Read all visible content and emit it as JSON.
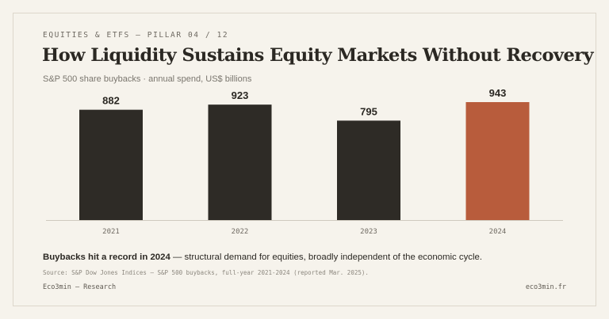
{
  "header": {
    "eyebrow": "EQUITIES & ETFS — PILLAR 04 / 12",
    "title": "How Liquidity Sustains Equity Markets Without Recovery",
    "subtitle": "S&P 500 share buybacks · annual spend, US$ billions"
  },
  "colors": {
    "bar": "#2e2b26",
    "highlight": "#b85c3c",
    "axis": "#cfc9be",
    "background": "#f6f3ec"
  },
  "chart_data": {
    "type": "bar",
    "categories": [
      "2021",
      "2022",
      "2023",
      "2024"
    ],
    "values": [
      882,
      923,
      795,
      943
    ],
    "highlight_index": 3,
    "ylim": [
      0,
      1000
    ],
    "grid": false,
    "title": "",
    "xlabel": "",
    "ylabel": ""
  },
  "takeaway": {
    "lead": "Buybacks hit a record in 2024",
    "rest": " — structural demand for equities, broadly independent of the economic cycle."
  },
  "source": "Source: S&P Dow Jones Indices — S&P 500 buybacks, full-year 2021-2024 (reported Mar. 2025).",
  "footer": {
    "left": "Eco3min — Research",
    "right": "eco3min.fr"
  }
}
